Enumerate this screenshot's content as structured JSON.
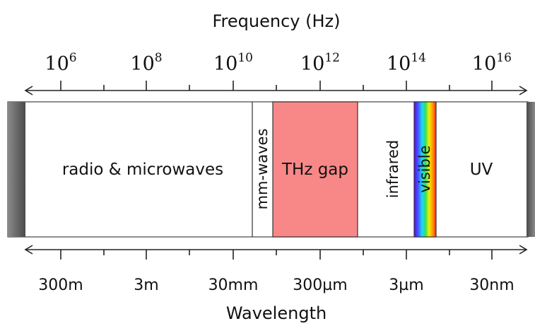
{
  "title_top": "Frequency (Hz)",
  "title_bottom": "Wavelength",
  "frequency_ticks": [
    {
      "base": "10",
      "exp": "6"
    },
    {
      "base": "10",
      "exp": "8"
    },
    {
      "base": "10",
      "exp": "10"
    },
    {
      "base": "10",
      "exp": "12"
    },
    {
      "base": "10",
      "exp": "14"
    },
    {
      "base": "10",
      "exp": "16"
    }
  ],
  "wavelength_ticks": [
    "300m",
    "3m",
    "30mm",
    "300µm",
    "3µm",
    "30nm"
  ],
  "bands": [
    {
      "label": "radio & microwaves",
      "orientation": "horizontal"
    },
    {
      "label": "mm-waves",
      "orientation": "vertical"
    },
    {
      "label": "THz gap",
      "orientation": "horizontal",
      "color": "#f88787"
    },
    {
      "label": "infrared",
      "orientation": "vertical"
    },
    {
      "label": "visible",
      "orientation": "vertical",
      "color": "rainbow"
    },
    {
      "label": "UV",
      "orientation": "horizontal"
    }
  ]
}
